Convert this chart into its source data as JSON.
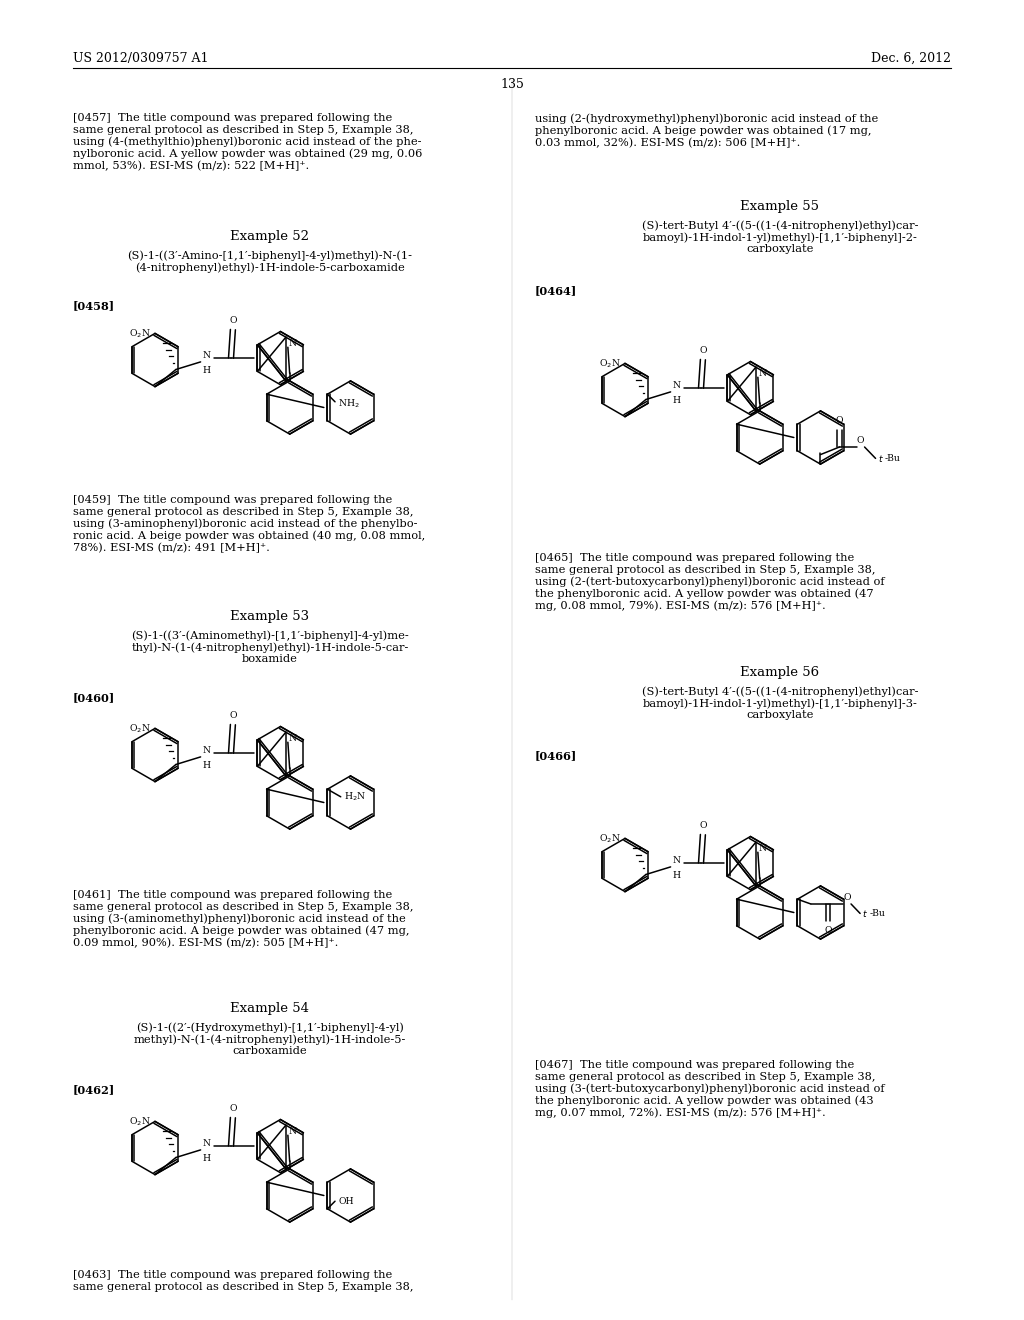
{
  "bg": "#ffffff",
  "header_left": "US 2012/0309757 A1",
  "header_right": "Dec. 6, 2012",
  "page_num": "135",
  "font_body": 8.5,
  "font_example": 9.5,
  "font_header": 9.0
}
